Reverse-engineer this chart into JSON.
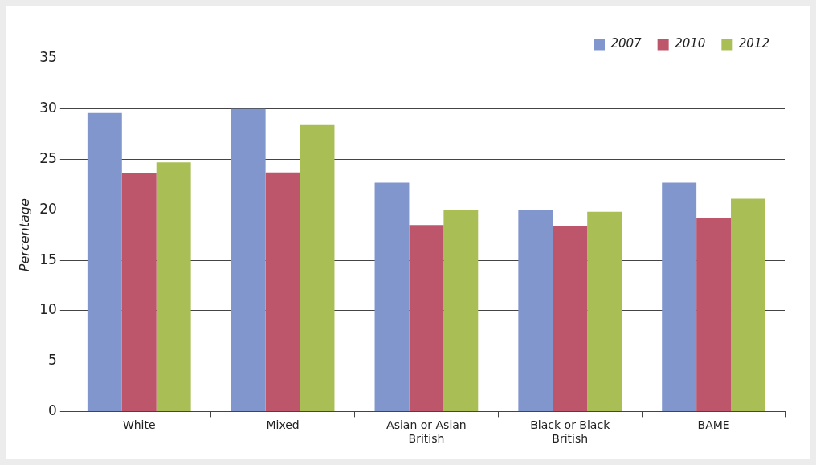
{
  "chart_data": {
    "type": "bar",
    "ylabel": "Percentage",
    "categories": [
      "White",
      "Mixed",
      "Asian or Asian British",
      "Black or Black British",
      "BAME"
    ],
    "series": [
      {
        "name": "2007",
        "color": "#8196cd",
        "values": [
          29.6,
          30.0,
          22.7,
          20.0,
          22.7
        ]
      },
      {
        "name": "2010",
        "color": "#bd566b",
        "values": [
          23.6,
          23.7,
          18.5,
          18.4,
          19.2
        ]
      },
      {
        "name": "2012",
        "color": "#a9bf55",
        "values": [
          24.7,
          28.4,
          20.0,
          19.8,
          21.1
        ]
      }
    ],
    "ylim": [
      0,
      35
    ],
    "yticks": [
      0,
      5,
      10,
      15,
      20,
      25,
      30,
      35
    ],
    "grid": "y",
    "legend": "top right"
  }
}
